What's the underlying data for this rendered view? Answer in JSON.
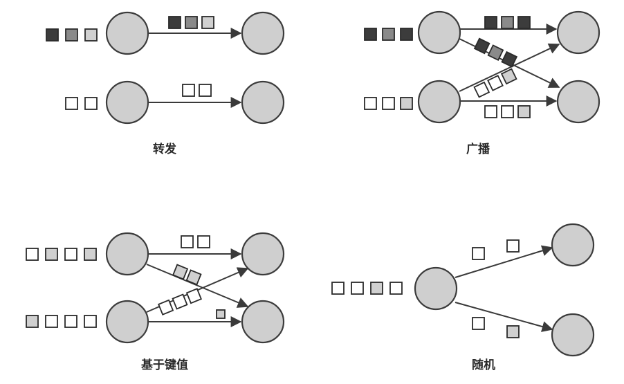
{
  "colors": {
    "dark": "#3c3c3c",
    "mid": "#8a8a8a",
    "light": "#d0d0d0",
    "empty": "#ffffff",
    "node_fill": "#cfcfcf",
    "stroke": "#2a2a2a"
  },
  "panels": [
    {
      "id": "forwarding",
      "caption": "转发"
    },
    {
      "id": "broadcast",
      "caption": "广播"
    },
    {
      "id": "key-based",
      "caption": "基于键值"
    },
    {
      "id": "random",
      "caption": "随机"
    }
  ]
}
